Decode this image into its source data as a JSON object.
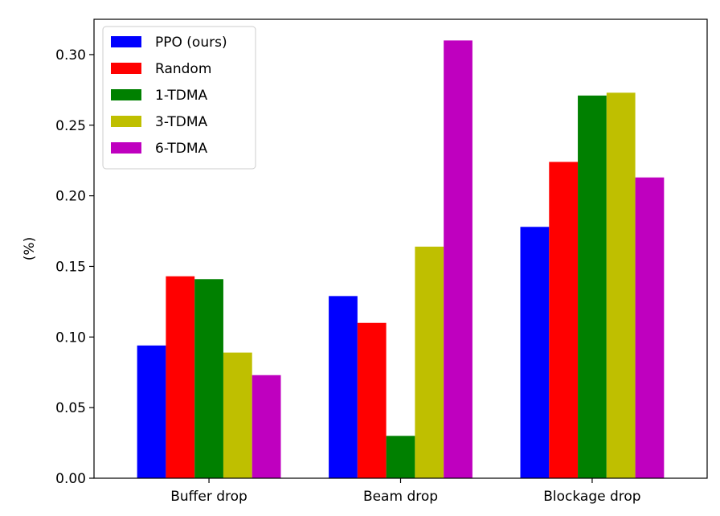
{
  "chart_data": {
    "type": "bar",
    "title": "",
    "xlabel": "",
    "ylabel": "(%)",
    "categories": [
      "Buffer drop",
      "Beam drop",
      "Blockage drop"
    ],
    "series": [
      {
        "name": "PPO (ours)",
        "color": "#0000ff",
        "values": [
          0.094,
          0.129,
          0.178
        ]
      },
      {
        "name": "Random",
        "color": "#ff0000",
        "values": [
          0.143,
          0.11,
          0.224
        ]
      },
      {
        "name": "1-TDMA",
        "color": "#008000",
        "values": [
          0.141,
          0.03,
          0.271
        ]
      },
      {
        "name": "3-TDMA",
        "color": "#bfbf00",
        "values": [
          0.089,
          0.164,
          0.273
        ]
      },
      {
        "name": "6-TDMA",
        "color": "#bf00bf",
        "values": [
          0.073,
          0.31,
          0.213
        ]
      }
    ],
    "ylim": [
      0.0,
      0.325
    ],
    "yticks": [
      "0.00",
      "0.05",
      "0.10",
      "0.15",
      "0.20",
      "0.25",
      "0.30"
    ],
    "grid": false,
    "legend_position": "top-left"
  }
}
